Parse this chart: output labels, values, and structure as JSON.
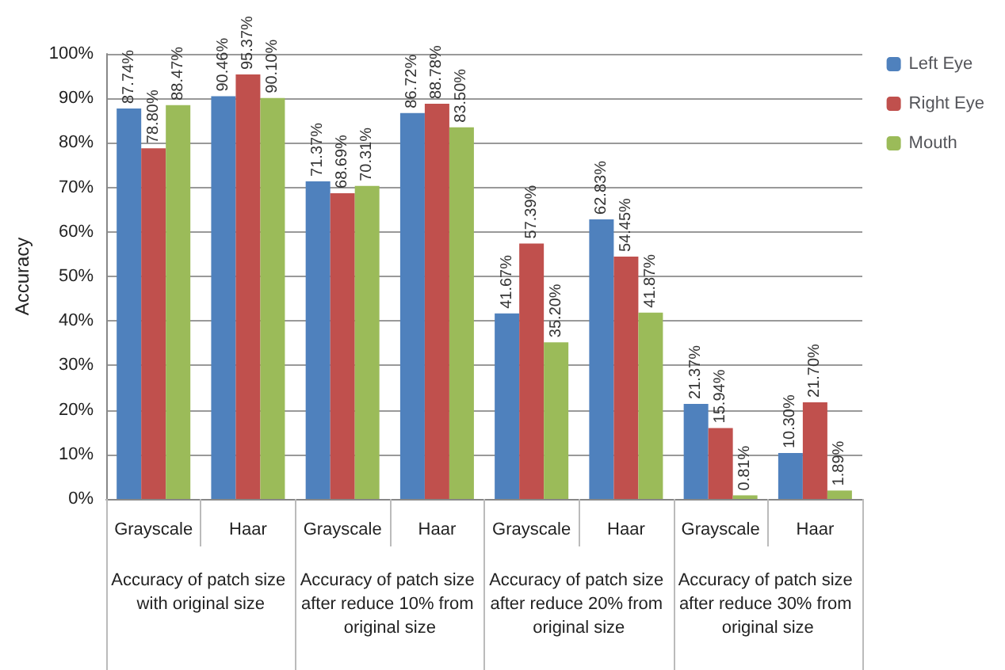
{
  "chart_data": {
    "type": "bar",
    "ylabel": "Accuracy",
    "categories": [
      "Grayscale",
      "Haar",
      "Grayscale",
      "Haar",
      "Grayscale",
      "Haar",
      "Grayscale",
      "Haar"
    ],
    "series": [
      {
        "name": "Left Eye",
        "color": "#4f81bd",
        "values": [
          87.74,
          90.46,
          71.37,
          86.72,
          41.67,
          62.83,
          21.37,
          10.3
        ],
        "value_labels": [
          "87.74%",
          "90.46%",
          "71.37%",
          "86.72%",
          "41.67%",
          "62.83%",
          "21.37%",
          "10.30%"
        ]
      },
      {
        "name": "Right Eye",
        "color": "#c0504d",
        "values": [
          78.8,
          95.37,
          68.69,
          88.78,
          57.39,
          54.45,
          15.94,
          21.7
        ],
        "value_labels": [
          "78.80%",
          "95.37%",
          "68.69%",
          "88.78%",
          "57.39%",
          "54.45%",
          "15.94%",
          "21.70%"
        ]
      },
      {
        "name": "Mouth",
        "color": "#9bbb59",
        "values": [
          88.47,
          90.1,
          70.31,
          83.5,
          35.2,
          41.87,
          0.81,
          1.89
        ],
        "value_labels": [
          "88.47%",
          "90.10%",
          "70.31%",
          "83.50%",
          "35.20%",
          "41.87%",
          "0.81%",
          "1.89%"
        ]
      }
    ],
    "annotations": [
      "Accuracy of patch size with original size",
      "Accuracy of patch size after reduce 10% from original size",
      "Accuracy of patch size after reduce 20% from original size",
      "Accuracy of patch size after reduce 30% from original size"
    ],
    "ylim": [
      0,
      100
    ],
    "yticks": [
      {
        "value": 0,
        "label": "0%"
      },
      {
        "value": 10,
        "label": "10%"
      },
      {
        "value": 20,
        "label": "20%"
      },
      {
        "value": 30,
        "label": "30%"
      },
      {
        "value": 40,
        "label": "40%"
      },
      {
        "value": 50,
        "label": "50%"
      },
      {
        "value": 60,
        "label": "60%"
      },
      {
        "value": 70,
        "label": "70%"
      },
      {
        "value": 80,
        "label": "80%"
      },
      {
        "value": 90,
        "label": "90%"
      },
      {
        "value": 100,
        "label": "100%"
      }
    ],
    "grid": "y",
    "legend": "right"
  }
}
